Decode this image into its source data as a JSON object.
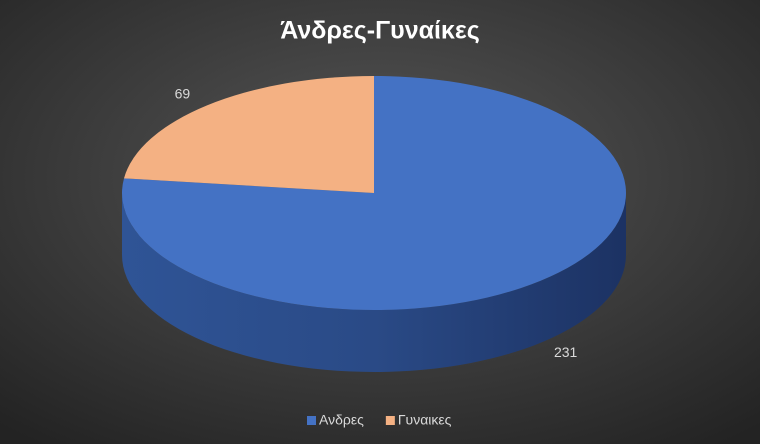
{
  "chart_data": {
    "type": "pie",
    "title": "Άνδρες-Γυναίκες",
    "categories": [
      "Ανδρες",
      "Γυναικες"
    ],
    "values": [
      231,
      69
    ],
    "colors": [
      "#4472c4",
      "#f4b183"
    ],
    "legend": "bottom"
  }
}
